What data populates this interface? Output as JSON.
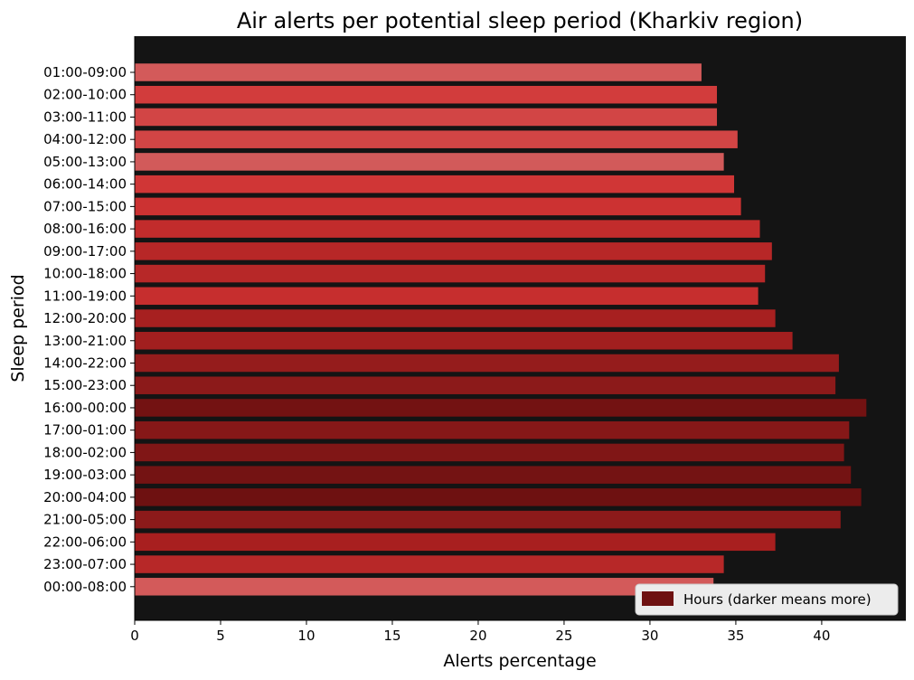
{
  "chart_data": {
    "type": "bar",
    "orientation": "horizontal",
    "title": "Air alerts per potential sleep period (Kharkiv region)",
    "xlabel": "Alerts percentage",
    "ylabel": "Sleep period",
    "xlim": [
      0,
      44.9
    ],
    "xticks": [
      0,
      5,
      10,
      15,
      20,
      25,
      30,
      35,
      40
    ],
    "grid": false,
    "plot_background": "#141414",
    "legend": {
      "label": "Hours (darker means more)",
      "placement": "bottom-right",
      "swatch_color": "#6e1111"
    },
    "categories": [
      "01:00-09:00",
      "02:00-10:00",
      "03:00-11:00",
      "04:00-12:00",
      "05:00-13:00",
      "06:00-14:00",
      "07:00-15:00",
      "08:00-16:00",
      "09:00-17:00",
      "10:00-18:00",
      "11:00-19:00",
      "12:00-20:00",
      "13:00-21:00",
      "14:00-22:00",
      "15:00-23:00",
      "16:00-00:00",
      "17:00-01:00",
      "18:00-02:00",
      "19:00-03:00",
      "20:00-04:00",
      "21:00-05:00",
      "22:00-06:00",
      "23:00-07:00",
      "00:00-08:00"
    ],
    "values": [
      33.0,
      33.9,
      33.9,
      35.1,
      34.3,
      34.9,
      35.3,
      36.4,
      37.1,
      36.7,
      36.3,
      37.3,
      38.3,
      41.0,
      40.8,
      42.6,
      41.6,
      41.3,
      41.7,
      42.3,
      41.1,
      37.3,
      34.3,
      33.7
    ],
    "colors": [
      "#d35a5a",
      "#d23c3c",
      "#d24545",
      "#d24545",
      "#d25a5a",
      "#d03636",
      "#cc3232",
      "#c22c2c",
      "#b72727",
      "#b72828",
      "#c62e2e",
      "#a72020",
      "#a21f1f",
      "#951c1c",
      "#8c1a1a",
      "#731212",
      "#861818",
      "#801616",
      "#741313",
      "#6e1111",
      "#8c1a1a",
      "#a81f1f",
      "#b72828",
      "#d35a5a"
    ]
  }
}
